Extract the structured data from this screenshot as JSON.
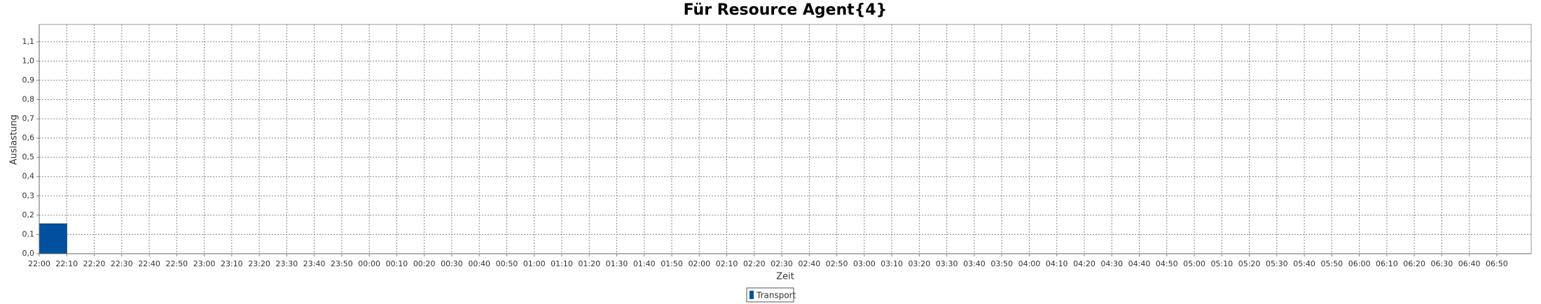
{
  "chart_data": {
    "type": "bar",
    "title": "Für Resource Agent{4}",
    "x_label": "Zeit",
    "y_label": "Auslastung",
    "categories": [
      "22:00",
      "22:10",
      "22:20",
      "22:30",
      "22:40",
      "22:50",
      "23:00",
      "23:10",
      "23:20",
      "23:30",
      "23:40",
      "23:50",
      "00:00",
      "00:10",
      "00:20",
      "00:30",
      "00:40",
      "00:50",
      "01:00",
      "01:10",
      "01:20",
      "01:30",
      "01:40",
      "01:50",
      "02:00",
      "02:10",
      "02:20",
      "02:30",
      "02:40",
      "02:50",
      "03:00",
      "03:10",
      "03:20",
      "03:30",
      "03:40",
      "03:50",
      "04:00",
      "04:10",
      "04:20",
      "04:30",
      "04:40",
      "04:50",
      "05:00",
      "05:10",
      "05:20",
      "05:30",
      "05:40",
      "05:50",
      "06:00",
      "06:10",
      "06:20",
      "06:30",
      "06:40",
      "06:50"
    ],
    "series": [
      {
        "name": "Transport",
        "color": "#0050a0",
        "values": [
          0.155,
          null,
          null,
          null,
          null,
          null,
          null,
          null,
          null,
          null,
          null,
          null,
          null,
          null,
          null,
          null,
          null,
          null,
          null,
          null,
          null,
          null,
          null,
          null,
          null,
          null,
          null,
          null,
          null,
          null,
          null,
          null,
          null,
          null,
          null,
          null,
          null,
          null,
          null,
          null,
          null,
          null,
          null,
          null,
          null,
          null,
          null,
          null,
          null,
          null,
          null,
          null,
          null,
          null
        ]
      }
    ],
    "ylim": [
      0,
      1.19
    ],
    "yticks": [
      {
        "value": 0,
        "label": "0,0"
      },
      {
        "value": 0.1,
        "label": "0,1"
      },
      {
        "value": 0.2,
        "label": "0,2"
      },
      {
        "value": 0.3,
        "label": "0,3"
      },
      {
        "value": 0.4,
        "label": "0,4"
      },
      {
        "value": 0.5,
        "label": "0,5"
      },
      {
        "value": 0.6,
        "label": "0,6"
      },
      {
        "value": 0.7,
        "label": "0,7"
      },
      {
        "value": 0.8,
        "label": "0,8"
      },
      {
        "value": 0.9,
        "label": "0,9"
      },
      {
        "value": 1.0,
        "label": "1,0"
      },
      {
        "value": 1.1,
        "label": "1,1"
      }
    ],
    "grid": true,
    "legend": "bottom"
  }
}
